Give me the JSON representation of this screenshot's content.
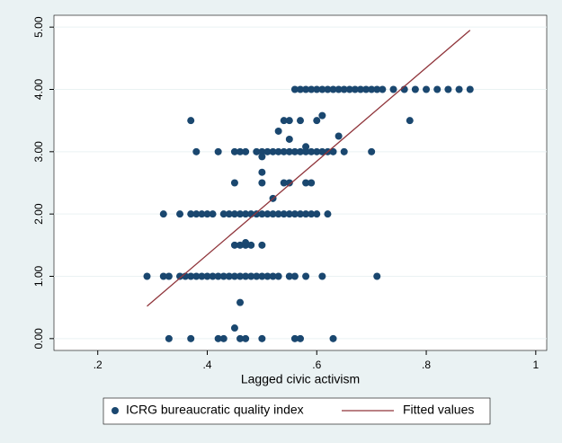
{
  "chart_data": {
    "type": "scatter",
    "x_label": "Lagged civic activism",
    "xlim": [
      0.12,
      1.02
    ],
    "ylim": [
      -0.19,
      5.19
    ],
    "xticks": [
      {
        "value": 0.2,
        "label": ".2"
      },
      {
        "value": 0.4,
        "label": ".4"
      },
      {
        "value": 0.6,
        "label": ".6"
      },
      {
        "value": 0.8,
        "label": ".8"
      },
      1
    ],
    "yticks": [
      {
        "value": 0,
        "label": "0.00"
      },
      {
        "value": 1,
        "label": "1.00"
      },
      {
        "value": 2,
        "label": "2.00"
      },
      {
        "value": 3,
        "label": "3.00"
      },
      {
        "value": 4,
        "label": "4.00"
      },
      {
        "value": 5,
        "label": "5.00"
      }
    ],
    "grid": true,
    "legend": "bottom",
    "series": [
      {
        "name": "ICRG bureaucratic quality index",
        "type": "scatter",
        "color": "#1a476f",
        "x": [
          0.56,
          0.57,
          0.58,
          0.59,
          0.6,
          0.61,
          0.62,
          0.63,
          0.64,
          0.65,
          0.66,
          0.67,
          0.68,
          0.69,
          0.7,
          0.71,
          0.72,
          0.74,
          0.76,
          0.78,
          0.8,
          0.82,
          0.84,
          0.86,
          0.88,
          0.37,
          0.54,
          0.55,
          0.57,
          0.6,
          0.77,
          0.61,
          0.53,
          0.64,
          0.55,
          0.38,
          0.42,
          0.45,
          0.46,
          0.47,
          0.49,
          0.5,
          0.51,
          0.52,
          0.53,
          0.54,
          0.55,
          0.56,
          0.57,
          0.58,
          0.59,
          0.6,
          0.61,
          0.62,
          0.63,
          0.65,
          0.7,
          0.58,
          0.5,
          0.5,
          0.45,
          0.5,
          0.54,
          0.55,
          0.58,
          0.59,
          0.52,
          0.32,
          0.35,
          0.37,
          0.38,
          0.39,
          0.4,
          0.41,
          0.43,
          0.44,
          0.45,
          0.46,
          0.47,
          0.48,
          0.49,
          0.5,
          0.51,
          0.52,
          0.53,
          0.54,
          0.55,
          0.56,
          0.57,
          0.58,
          0.59,
          0.6,
          0.62,
          0.45,
          0.46,
          0.47,
          0.48,
          0.5,
          0.47,
          0.29,
          0.32,
          0.33,
          0.35,
          0.36,
          0.37,
          0.38,
          0.39,
          0.4,
          0.41,
          0.42,
          0.43,
          0.44,
          0.45,
          0.46,
          0.47,
          0.48,
          0.49,
          0.5,
          0.51,
          0.52,
          0.53,
          0.55,
          0.56,
          0.58,
          0.61,
          0.71,
          0.46,
          0.45,
          0.33,
          0.37,
          0.42,
          0.43,
          0.46,
          0.47,
          0.5,
          0.56,
          0.57,
          0.63
        ],
        "values": [
          4,
          4,
          4,
          4,
          4,
          4,
          4,
          4,
          4,
          4,
          4,
          4,
          4,
          4,
          4,
          4,
          4,
          4,
          4,
          4,
          4,
          4,
          4,
          4,
          4,
          3.5,
          3.5,
          3.5,
          3.5,
          3.5,
          3.5,
          3.58,
          3.33,
          3.25,
          3.2,
          3,
          3,
          3,
          3,
          3,
          3,
          3,
          3,
          3,
          3,
          3,
          3,
          3,
          3,
          3,
          3,
          3,
          3,
          3,
          3,
          3,
          3,
          3.08,
          2.92,
          2.67,
          2.5,
          2.5,
          2.5,
          2.5,
          2.5,
          2.5,
          2.25,
          2,
          2,
          2,
          2,
          2,
          2,
          2,
          2,
          2,
          2,
          2,
          2,
          2,
          2,
          2,
          2,
          2,
          2,
          2,
          2,
          2,
          2,
          2,
          2,
          2,
          2,
          1.5,
          1.5,
          1.5,
          1.5,
          1.5,
          1.54,
          1,
          1,
          1,
          1,
          1,
          1,
          1,
          1,
          1,
          1,
          1,
          1,
          1,
          1,
          1,
          1,
          1,
          1,
          1,
          1,
          1,
          1,
          1,
          1,
          1,
          1,
          1,
          0.58,
          0.17,
          0,
          0,
          0,
          0,
          0,
          0,
          0,
          0,
          0,
          0
        ]
      },
      {
        "name": "Fitted values",
        "type": "line",
        "color": "#90353b",
        "x": [
          0.29,
          0.88
        ],
        "values": [
          0.52,
          4.95
        ]
      }
    ]
  }
}
